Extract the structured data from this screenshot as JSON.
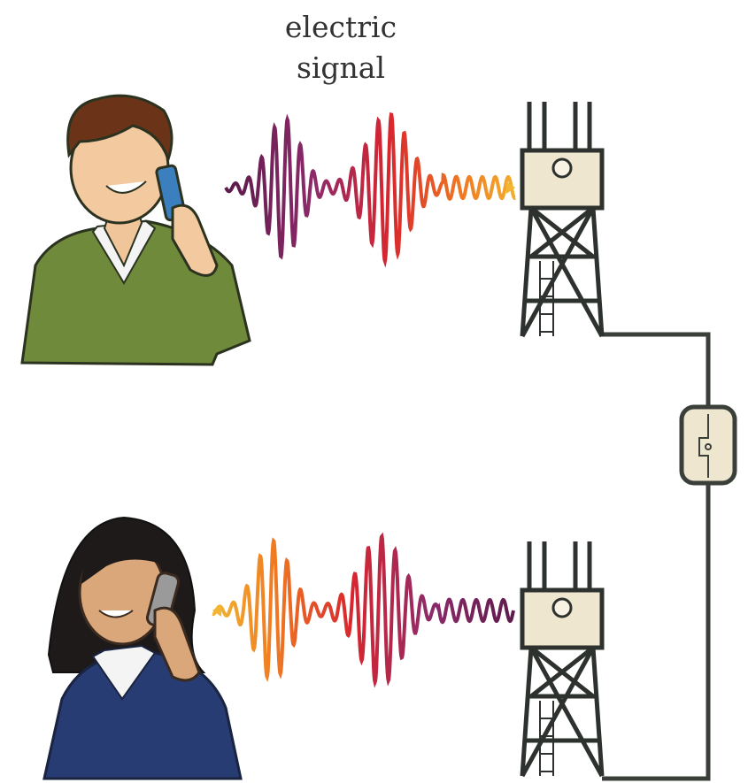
{
  "label": "electric signal"
}
